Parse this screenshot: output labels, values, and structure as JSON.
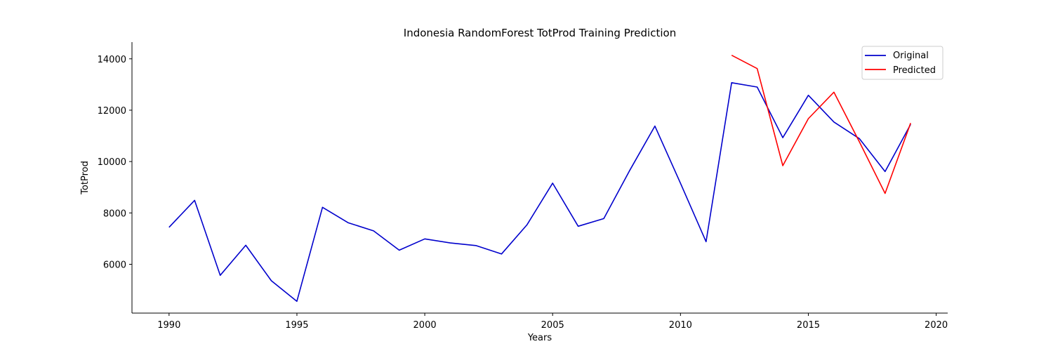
{
  "chart_data": {
    "type": "line",
    "title": "Indonesia RandomForest TotProd Training Prediction",
    "xlabel": "Years",
    "ylabel": "TotProd",
    "xlim": [
      1988.55,
      2020.45
    ],
    "ylim": [
      4100,
      14650
    ],
    "xticks": [
      1990,
      1995,
      2000,
      2005,
      2010,
      2015,
      2020
    ],
    "yticks": [
      6000,
      8000,
      10000,
      12000,
      14000
    ],
    "grid": false,
    "legend_position": "top-right",
    "series": [
      {
        "name": "Original",
        "color": "#0000cc",
        "x": [
          1990,
          1991,
          1992,
          1993,
          1994,
          1995,
          1996,
          1997,
          1998,
          1999,
          2000,
          2001,
          2002,
          2003,
          2004,
          2005,
          2006,
          2007,
          2008,
          2009,
          2010,
          2011,
          2012,
          2013,
          2014,
          2015,
          2016,
          2017,
          2018,
          2019
        ],
        "values": [
          7440,
          8490,
          5570,
          6740,
          5360,
          4560,
          8220,
          7620,
          7300,
          6550,
          6990,
          6830,
          6730,
          6400,
          7540,
          9160,
          7480,
          7780,
          9630,
          11380,
          9160,
          6880,
          13070,
          12900,
          10930,
          12580,
          11540,
          10890,
          9610,
          11450
        ]
      },
      {
        "name": "Predicted",
        "color": "#ff0000",
        "x": [
          2012,
          2013,
          2014,
          2015,
          2016,
          2017,
          2018,
          2019
        ],
        "values": [
          14140,
          13620,
          9840,
          11670,
          12700,
          10760,
          8760,
          11500
        ]
      }
    ]
  }
}
